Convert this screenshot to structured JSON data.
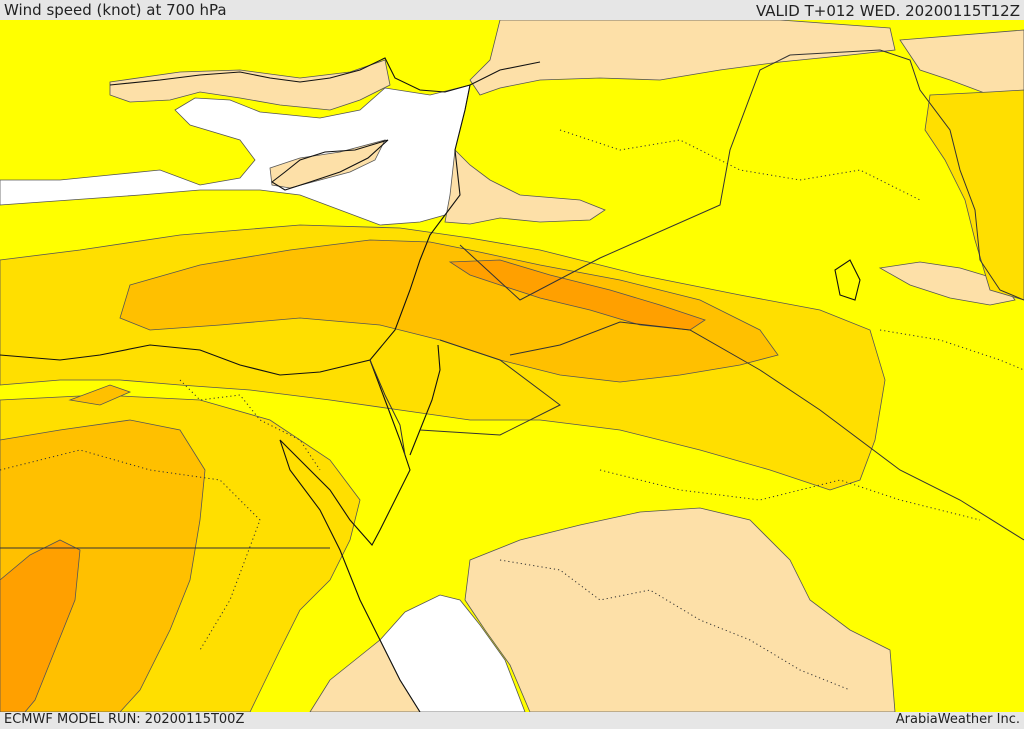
{
  "header": {
    "title": "Wind speed (knot) at 700 hPa",
    "valid": "VALID T+012 WED. 20200115T12Z"
  },
  "footer": {
    "model_run": "ECMWF MODEL RUN: 20200115T00Z",
    "credit": "ArabiaWeather Inc."
  },
  "colors": {
    "sea_no_data": "#ffffff",
    "band_low": "#fde0a8",
    "band_1": "#ffff00",
    "band_2": "#ffdf00",
    "band_3": "#ffc000",
    "band_4": "#ffa000"
  }
}
